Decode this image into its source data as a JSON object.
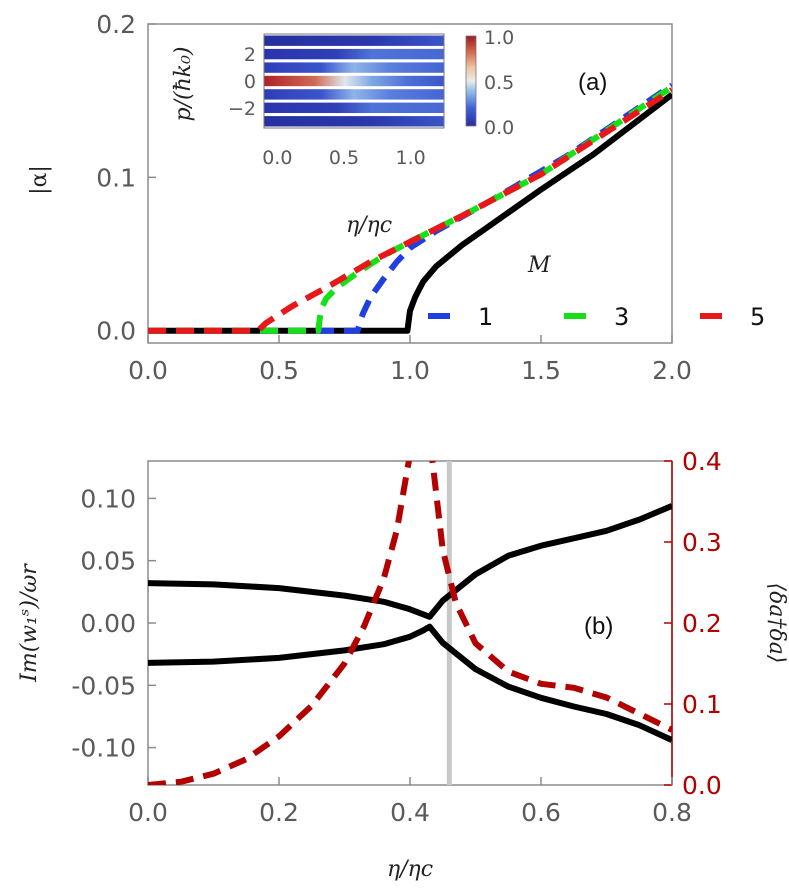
{
  "chart_data": [
    {
      "panel": "(a)",
      "type": "line",
      "ylabel": "|α|",
      "xlim": [
        0.0,
        2.0
      ],
      "ylim": [
        -0.008,
        0.2
      ],
      "x_ticks": [
        "0.0",
        "0.5",
        "1.0",
        "1.5",
        "2.0"
      ],
      "y_ticks": [
        "0.0",
        "0.1",
        "0.2"
      ],
      "legend_title": "M",
      "series": [
        {
          "name": "1",
          "color": "#1f3fe0",
          "dash": true,
          "x": [
            0.0,
            0.8,
            0.82,
            0.85,
            0.9,
            0.95,
            1.0,
            1.1,
            1.3,
            1.6,
            2.0
          ],
          "y": [
            0.0,
            0.0,
            0.011,
            0.022,
            0.034,
            0.045,
            0.054,
            0.065,
            0.084,
            0.114,
            0.16
          ]
        },
        {
          "name": "3",
          "color": "#18e018",
          "dash": true,
          "x": [
            0.0,
            0.65,
            0.66,
            0.68,
            0.72,
            0.8,
            0.9,
            1.0,
            1.2,
            1.5,
            2.0
          ],
          "y": [
            0.0,
            0.0,
            0.014,
            0.021,
            0.028,
            0.038,
            0.049,
            0.058,
            0.075,
            0.102,
            0.159
          ]
        },
        {
          "name": "5",
          "color": "#e81818",
          "dash": true,
          "x": [
            0.0,
            0.42,
            0.45,
            0.55,
            0.7,
            0.85,
            1.0,
            1.2,
            1.5,
            2.0
          ],
          "y": [
            0.0,
            0.0,
            0.005,
            0.016,
            0.03,
            0.045,
            0.058,
            0.075,
            0.102,
            0.157
          ]
        },
        {
          "name": "",
          "color": "#000000",
          "dash": false,
          "x": [
            0.0,
            0.99,
            1.0,
            1.02,
            1.05,
            1.1,
            1.2,
            1.3,
            1.5,
            1.7,
            2.0
          ],
          "y": [
            0.0,
            0.0,
            0.013,
            0.022,
            0.032,
            0.042,
            0.056,
            0.068,
            0.092,
            0.115,
            0.154
          ]
        }
      ],
      "inset": {
        "type": "heatmap",
        "ylabel": "p/(ħk₀)",
        "xlabel": "η/ηc",
        "x_ticks": [
          "0.0",
          "0.5",
          "1.0"
        ],
        "y_ticks": [
          "2",
          "0",
          "−2"
        ],
        "colorbar_ticks": [
          "1.0",
          "0.5",
          "0.0"
        ],
        "rows": [
          3,
          2,
          1,
          0,
          -1,
          -2,
          -3
        ],
        "xlim": [
          -0.1,
          1.25
        ]
      }
    },
    {
      "panel": "(b)",
      "type": "line",
      "ylabel": "Im(w₁ˢ)/ωr",
      "y2label": "⟨δa†δa⟩",
      "xlabel": "η/ηc",
      "xlim": [
        0.0,
        0.8
      ],
      "ylim": [
        -0.13,
        0.13
      ],
      "y2lim": [
        0.0,
        0.4
      ],
      "x_ticks": [
        "0.0",
        "0.2",
        "0.4",
        "0.6",
        "0.8"
      ],
      "y_ticks": [
        "0.10",
        "0.05",
        "0.00",
        "-0.05",
        "-0.10"
      ],
      "y2_ticks": [
        "0.4",
        "0.3",
        "0.2",
        "0.1",
        "0.0"
      ],
      "vline_x": 0.46,
      "series": [
        {
          "name": "",
          "color": "#000000",
          "axis": "left",
          "dash": false,
          "x": [
            0.0,
            0.1,
            0.2,
            0.3,
            0.36,
            0.4,
            0.42,
            0.43,
            0.45,
            0.5,
            0.55,
            0.6,
            0.65,
            0.7,
            0.75,
            0.8
          ],
          "y": [
            0.032,
            0.031,
            0.028,
            0.022,
            0.017,
            0.011,
            0.007,
            0.005,
            0.018,
            0.039,
            0.054,
            0.062,
            0.068,
            0.074,
            0.083,
            0.094
          ]
        },
        {
          "name": "",
          "color": "#000000",
          "axis": "left",
          "dash": false,
          "x": [
            0.0,
            0.1,
            0.2,
            0.3,
            0.36,
            0.4,
            0.42,
            0.43,
            0.45,
            0.5,
            0.55,
            0.6,
            0.65,
            0.7,
            0.75,
            0.8
          ],
          "y": [
            -0.032,
            -0.031,
            -0.028,
            -0.022,
            -0.017,
            -0.011,
            -0.006,
            -0.003,
            -0.016,
            -0.037,
            -0.051,
            -0.06,
            -0.067,
            -0.073,
            -0.082,
            -0.094
          ]
        },
        {
          "name": "",
          "color": "#b30000",
          "axis": "right",
          "dash": true,
          "x": [
            0.0,
            0.05,
            0.1,
            0.15,
            0.2,
            0.25,
            0.3,
            0.33,
            0.36,
            0.38,
            0.395,
            0.405,
            0.43,
            0.44,
            0.45,
            0.47,
            0.5,
            0.55,
            0.6,
            0.65,
            0.7,
            0.75,
            0.8
          ],
          "y": [
            0.0,
            0.004,
            0.014,
            0.032,
            0.06,
            0.098,
            0.15,
            0.196,
            0.255,
            0.315,
            0.385,
            0.43,
            0.43,
            0.36,
            0.29,
            0.225,
            0.175,
            0.14,
            0.125,
            0.12,
            0.108,
            0.088,
            0.068
          ]
        }
      ]
    }
  ]
}
